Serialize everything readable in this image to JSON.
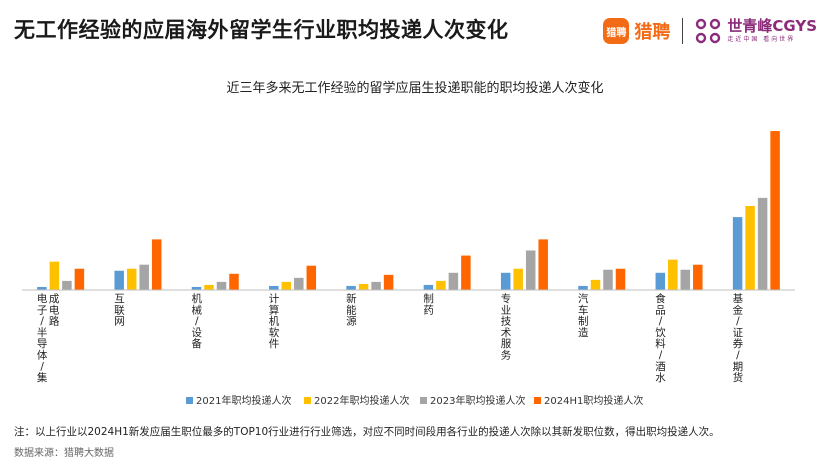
{
  "header": {
    "title": "无工作经验的应届海外留学生行业职均投递人次变化",
    "brand_liepin_badge": "猎聘",
    "brand_liepin_name": "猎聘",
    "brand_cgys_name": "世青峰CGYS",
    "brand_cgys_slogan": "走近中国 看向世界"
  },
  "colors": {
    "2021": "#5b9bd5",
    "2022": "#ffc000",
    "2023": "#a5a5a5",
    "2024H1": "#ff6600",
    "brand_liepin": "#f46b16",
    "brand_cgys": "#8b2b7a"
  },
  "chart_data": {
    "type": "bar",
    "title": "近三年多来无工作经验的留学应届生投递职能的职均投递人次变化",
    "categories": [
      "电子/半导体/集成电路",
      "互联网",
      "机械/设备",
      "计算机软件",
      "新能源",
      "制药",
      "专业技术服务",
      "汽车制造",
      "食品/饮料/酒水",
      "基金/证券/期货"
    ],
    "series": [
      {
        "name": "2021年职均投递人次",
        "values": [
          3,
          19,
          3,
          4,
          4,
          5,
          17,
          4,
          17,
          72
        ]
      },
      {
        "name": "2022年职均投递人次",
        "values": [
          28,
          21,
          5,
          8,
          6,
          9,
          21,
          10,
          30,
          83
        ]
      },
      {
        "name": "2023年职均投递人次",
        "values": [
          9,
          25,
          8,
          12,
          8,
          17,
          39,
          20,
          20,
          91
        ]
      },
      {
        "name": "2024H1职均投递人次",
        "values": [
          21,
          50,
          16,
          24,
          15,
          34,
          50,
          21,
          25,
          157
        ]
      }
    ],
    "ylim": [
      0,
      160
    ],
    "grid": false,
    "legend_position": "bottom"
  },
  "footer": {
    "note": "注：以上行业以2024H1新发应届生职位最多的TOP10行业进行行业筛选，对应不同时间段用各行业的投递人次除以其新发职位数，得出职均投递人次。",
    "source": "数据来源：猎聘大数据"
  }
}
